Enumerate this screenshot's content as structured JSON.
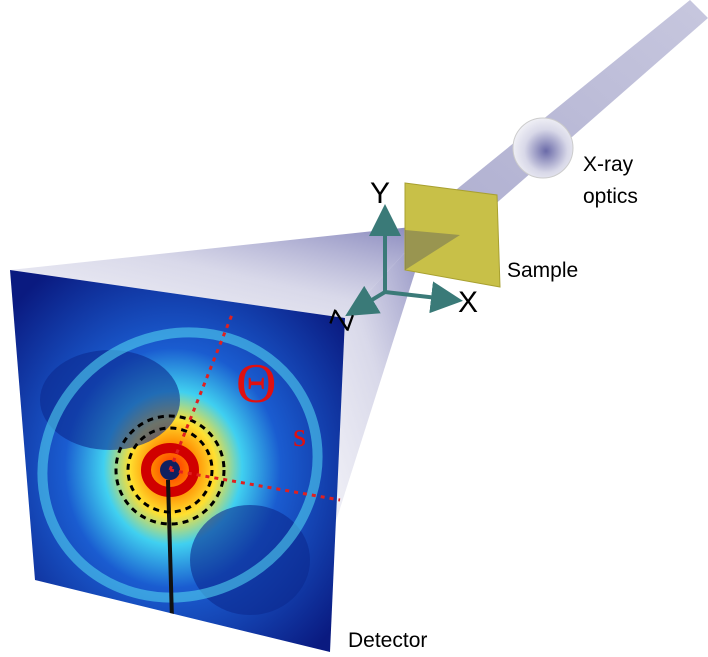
{
  "labels": {
    "xray": [
      "X-ray",
      "optics"
    ],
    "sample": "Sample",
    "detector": "Detector"
  },
  "axes": {
    "y": "Y",
    "x": "X",
    "z": "Z"
  },
  "angle": {
    "symbol": "Θ",
    "subscript": "s"
  }
}
